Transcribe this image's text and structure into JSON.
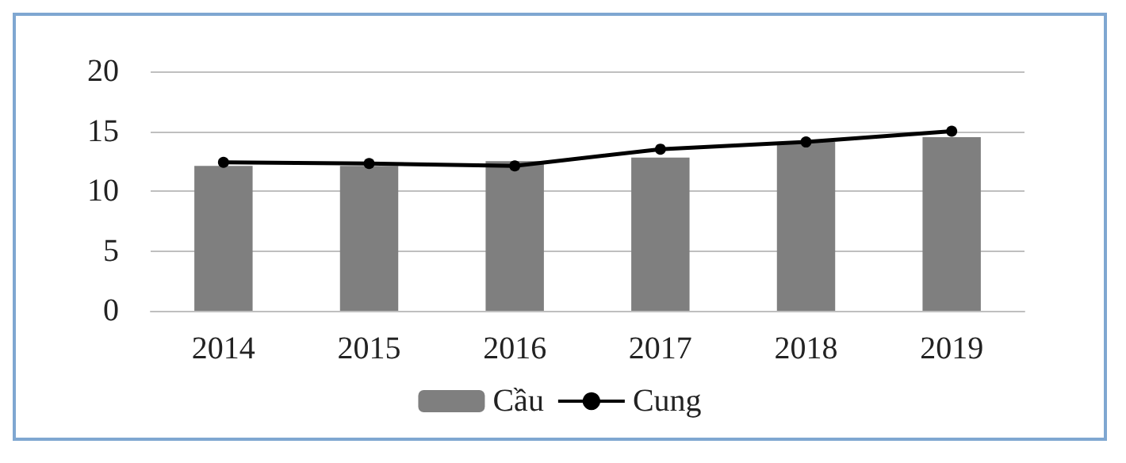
{
  "chart_data": {
    "type": "bar",
    "categories": [
      "2014",
      "2015",
      "2016",
      "2017",
      "2018",
      "2019"
    ],
    "series": [
      {
        "name": "Cầu",
        "color": "#7f7f7f",
        "values": [
          12.1,
          12.1,
          12.5,
          12.8,
          14.1,
          14.5
        ]
      },
      {
        "name": "Cung",
        "type": "line",
        "color": "#000000",
        "values": [
          12.4,
          12.3,
          12.1,
          13.5,
          14.1,
          15.0
        ]
      }
    ],
    "ylim": [
      0,
      20
    ],
    "yticks": [
      0,
      5,
      10,
      15,
      20
    ],
    "grid": "y",
    "legend": "bottom",
    "marker": "circle",
    "line_style": "solid"
  }
}
